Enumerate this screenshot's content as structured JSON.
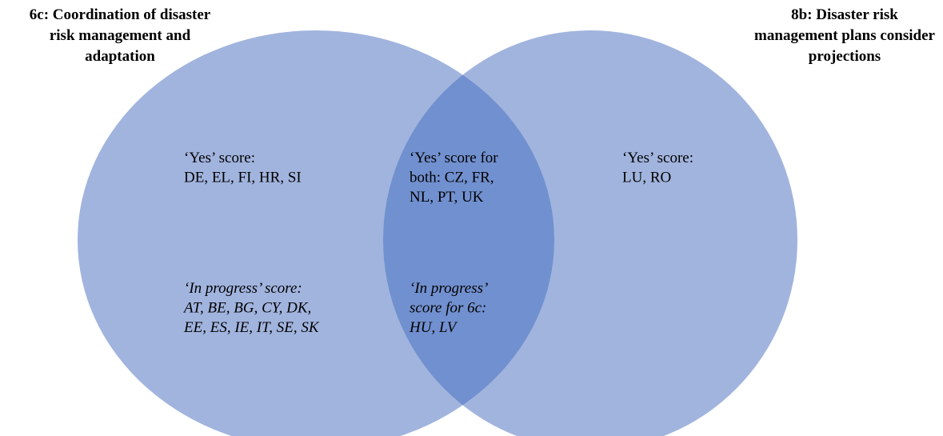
{
  "sets": [
    {
      "title": [
        "6c: Coordination of disaster",
        "risk management and",
        "adaptation"
      ]
    },
    {
      "title": [
        "8b: Disaster risk",
        "management plans consider",
        "projections"
      ]
    }
  ],
  "regions": {
    "left_yes": [
      "‘Yes’ score:",
      "DE, EL, FI, HR, SI"
    ],
    "left_in_progress": [
      "‘In progress’ score:",
      "AT, BE, BG, CY, DK,",
      "EE, ES, IE, IT, SE, SK"
    ],
    "both_yes": [
      "‘Yes’ score for",
      "both: CZ, FR,",
      "NL, PT, UK"
    ],
    "both_in_progress": [
      "‘In progress’",
      "score for 6c:",
      "HU, LV"
    ],
    "right_yes": [
      "‘Yes’ score:",
      "LU, RO"
    ]
  }
}
